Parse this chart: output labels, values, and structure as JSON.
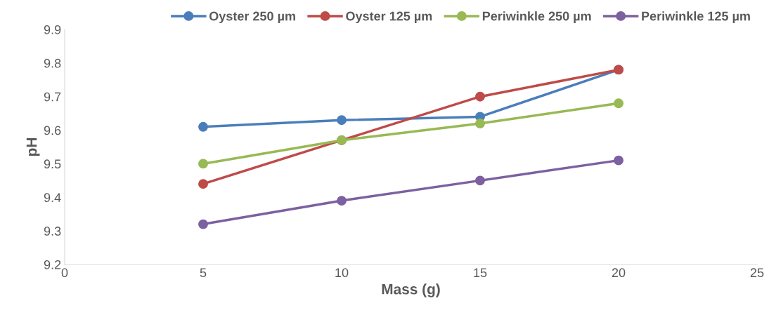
{
  "chart_data": {
    "type": "line",
    "xlabel": "Mass (g)",
    "ylabel": "pH",
    "x": [
      5,
      10,
      15,
      20
    ],
    "series": [
      {
        "name": "Oyster 250 µm",
        "color": "#4a7ebb",
        "values": [
          9.61,
          9.63,
          9.64,
          9.78
        ]
      },
      {
        "name": "Oyster 125 µm",
        "color": "#be4b48",
        "values": [
          9.44,
          9.57,
          9.7,
          9.78
        ]
      },
      {
        "name": "Periwinkle 250 µm",
        "color": "#98b954",
        "values": [
          9.5,
          9.57,
          9.62,
          9.68
        ]
      },
      {
        "name": "Periwinkle 125 µm",
        "color": "#7d60a0",
        "values": [
          9.32,
          9.39,
          9.45,
          9.51
        ]
      }
    ],
    "xlim": [
      0,
      25
    ],
    "xticks": [
      0,
      5,
      10,
      15,
      20,
      25
    ],
    "ylim": [
      9.2,
      9.9
    ],
    "yticks": [
      9.2,
      9.3,
      9.4,
      9.5,
      9.6,
      9.7,
      9.8,
      9.9
    ],
    "grid": false,
    "legend": "top",
    "marker": "circle",
    "line_style": "solid"
  }
}
